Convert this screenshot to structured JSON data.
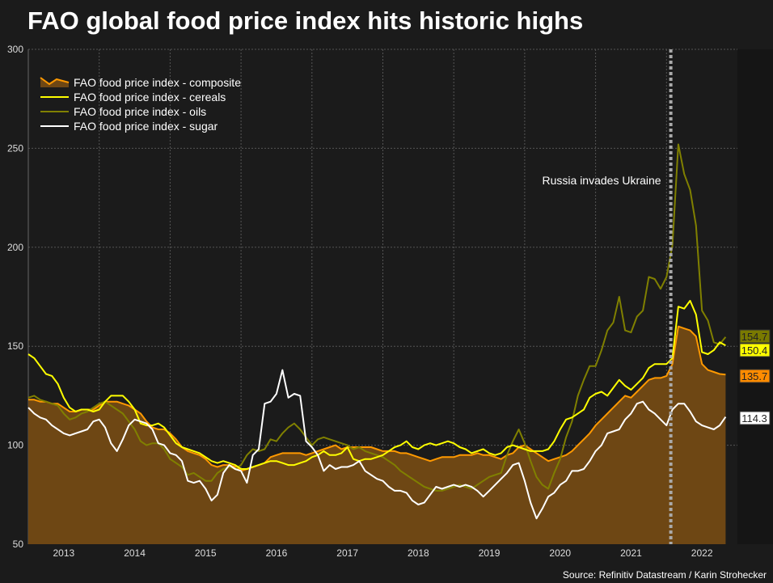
{
  "title": "FAO global food price index hits historic highs",
  "source": "Source: Refinitiv Datastream / Karin Strohecker",
  "chart_data": {
    "type": "line",
    "title": "FAO global food price index hits historic highs",
    "xlabel": "",
    "ylabel": "",
    "ylim": [
      50,
      300
    ],
    "yticks": [
      50,
      100,
      150,
      200,
      250,
      300
    ],
    "xticks": [
      "2013",
      "2014",
      "2015",
      "2016",
      "2017",
      "2018",
      "2019",
      "2020",
      "2021",
      "2022"
    ],
    "x_start": "2013-01",
    "frequency": "monthly",
    "grid": true,
    "legend_position": "top-left",
    "annotation": {
      "label": "Russia invades Ukraine",
      "month_index": 109
    },
    "series": [
      {
        "name": "FAO food price index - composite",
        "style": "area",
        "color": "#ff9900",
        "fill": "#6e4714",
        "end_label": "135.7",
        "values": [
          123,
          123,
          122,
          122,
          121,
          121,
          119,
          117,
          117,
          118,
          118,
          118,
          120,
          122,
          122,
          122,
          121,
          120,
          118,
          116,
          112,
          109,
          108,
          108,
          106,
          103,
          99,
          97,
          96,
          95,
          93,
          90,
          89,
          90,
          90,
          89,
          87,
          88,
          89,
          90,
          91,
          94,
          95,
          96,
          96,
          96,
          96,
          95,
          96,
          97,
          98,
          99,
          100,
          98,
          99,
          99,
          99,
          99,
          99,
          98,
          97,
          97,
          97,
          96,
          96,
          95,
          94,
          93,
          92,
          93,
          94,
          94,
          94,
          95,
          95,
          95,
          96,
          95,
          95,
          94,
          93,
          95,
          96,
          99,
          100,
          98,
          96,
          94,
          92,
          93,
          94,
          95,
          97,
          100,
          103,
          106,
          110,
          113,
          116,
          119,
          122,
          125,
          124,
          127,
          130,
          133,
          134,
          134,
          135,
          141,
          160,
          159,
          158,
          155,
          141,
          138,
          137,
          136,
          135.7
        ]
      },
      {
        "name": "FAO food price index - cereals",
        "style": "line",
        "color": "#ffff00",
        "end_label": "150.4",
        "values": [
          146,
          144,
          140,
          136,
          135,
          131,
          124,
          119,
          117,
          118,
          118,
          117,
          118,
          122,
          125,
          125,
          125,
          122,
          118,
          111,
          110,
          110,
          111,
          109,
          105,
          101,
          99,
          98,
          97,
          96,
          94,
          92,
          91,
          92,
          91,
          90,
          88,
          88,
          89,
          90,
          91,
          92,
          92,
          91,
          90,
          90,
          91,
          92,
          94,
          95,
          97,
          95,
          95,
          96,
          99,
          93,
          92,
          93,
          93,
          94,
          95,
          97,
          99,
          100,
          102,
          99,
          98,
          100,
          101,
          100,
          101,
          102,
          101,
          99,
          98,
          96,
          97,
          98,
          96,
          95,
          96,
          99,
          100,
          99,
          98,
          97,
          97,
          97,
          98,
          102,
          108,
          113,
          114,
          116,
          118,
          124,
          126,
          127,
          125,
          129,
          133,
          130,
          128,
          131,
          134,
          139,
          141,
          141,
          141,
          144,
          170,
          169,
          173,
          166,
          147,
          146,
          148,
          152,
          150.4
        ]
      },
      {
        "name": "FAO food price index - oils",
        "style": "line",
        "color": "#808000",
        "end_label": "154.7",
        "values": [
          124,
          125,
          123,
          122,
          121,
          120,
          116,
          113,
          114,
          116,
          117,
          119,
          121,
          122,
          120,
          118,
          116,
          112,
          108,
          102,
          100,
          101,
          101,
          98,
          93,
          91,
          89,
          85,
          86,
          84,
          82,
          82,
          86,
          88,
          89,
          88,
          90,
          95,
          98,
          97,
          98,
          103,
          102,
          106,
          109,
          111,
          108,
          104,
          100,
          103,
          104,
          103,
          102,
          101,
          100,
          98,
          99,
          97,
          96,
          95,
          94,
          92,
          90,
          87,
          85,
          83,
          81,
          79,
          78,
          77,
          77,
          78,
          79,
          80,
          79,
          78,
          80,
          82,
          84,
          85,
          86,
          95,
          102,
          108,
          101,
          92,
          84,
          80,
          78,
          86,
          93,
          104,
          112,
          125,
          133,
          140,
          140,
          148,
          158,
          162,
          175,
          158,
          157,
          165,
          168,
          185,
          184,
          179,
          185,
          201,
          252,
          237,
          229,
          211,
          168,
          163,
          152,
          151,
          154.7
        ]
      },
      {
        "name": "FAO food price index - sugar",
        "style": "line",
        "color": "#ffffff",
        "end_label": "114.3",
        "values": [
          119,
          116,
          114,
          113,
          110,
          108,
          106,
          105,
          106,
          107,
          108,
          112,
          113,
          109,
          101,
          97,
          103,
          110,
          113,
          112,
          111,
          108,
          101,
          100,
          96,
          95,
          92,
          82,
          81,
          82,
          78,
          72,
          75,
          86,
          90,
          88,
          87,
          81,
          95,
          98,
          121,
          122,
          126,
          138,
          124,
          126,
          125,
          102,
          99,
          95,
          87,
          90,
          88,
          89,
          89,
          90,
          92,
          87,
          85,
          83,
          82,
          79,
          77,
          77,
          76,
          72,
          70,
          71,
          75,
          79,
          78,
          79,
          80,
          79,
          80,
          79,
          77,
          74,
          77,
          80,
          83,
          86,
          90,
          91,
          82,
          71,
          63,
          68,
          74,
          76,
          80,
          82,
          87,
          87,
          88,
          92,
          97,
          100,
          106,
          107,
          108,
          113,
          116,
          121,
          122,
          118,
          116,
          113,
          110,
          118,
          121,
          121,
          117,
          112,
          110,
          109,
          108,
          110,
          114.3
        ]
      }
    ],
    "end_label_colors": {
      "composite": {
        "bg": "#ff8c00",
        "fg": "#222222"
      },
      "cereals": {
        "bg": "#ffff00",
        "fg": "#222222"
      },
      "oils": {
        "bg": "#7a7a00",
        "fg": "#222222"
      },
      "sugar": {
        "bg": "#ffffff",
        "fg": "#222222"
      }
    }
  }
}
